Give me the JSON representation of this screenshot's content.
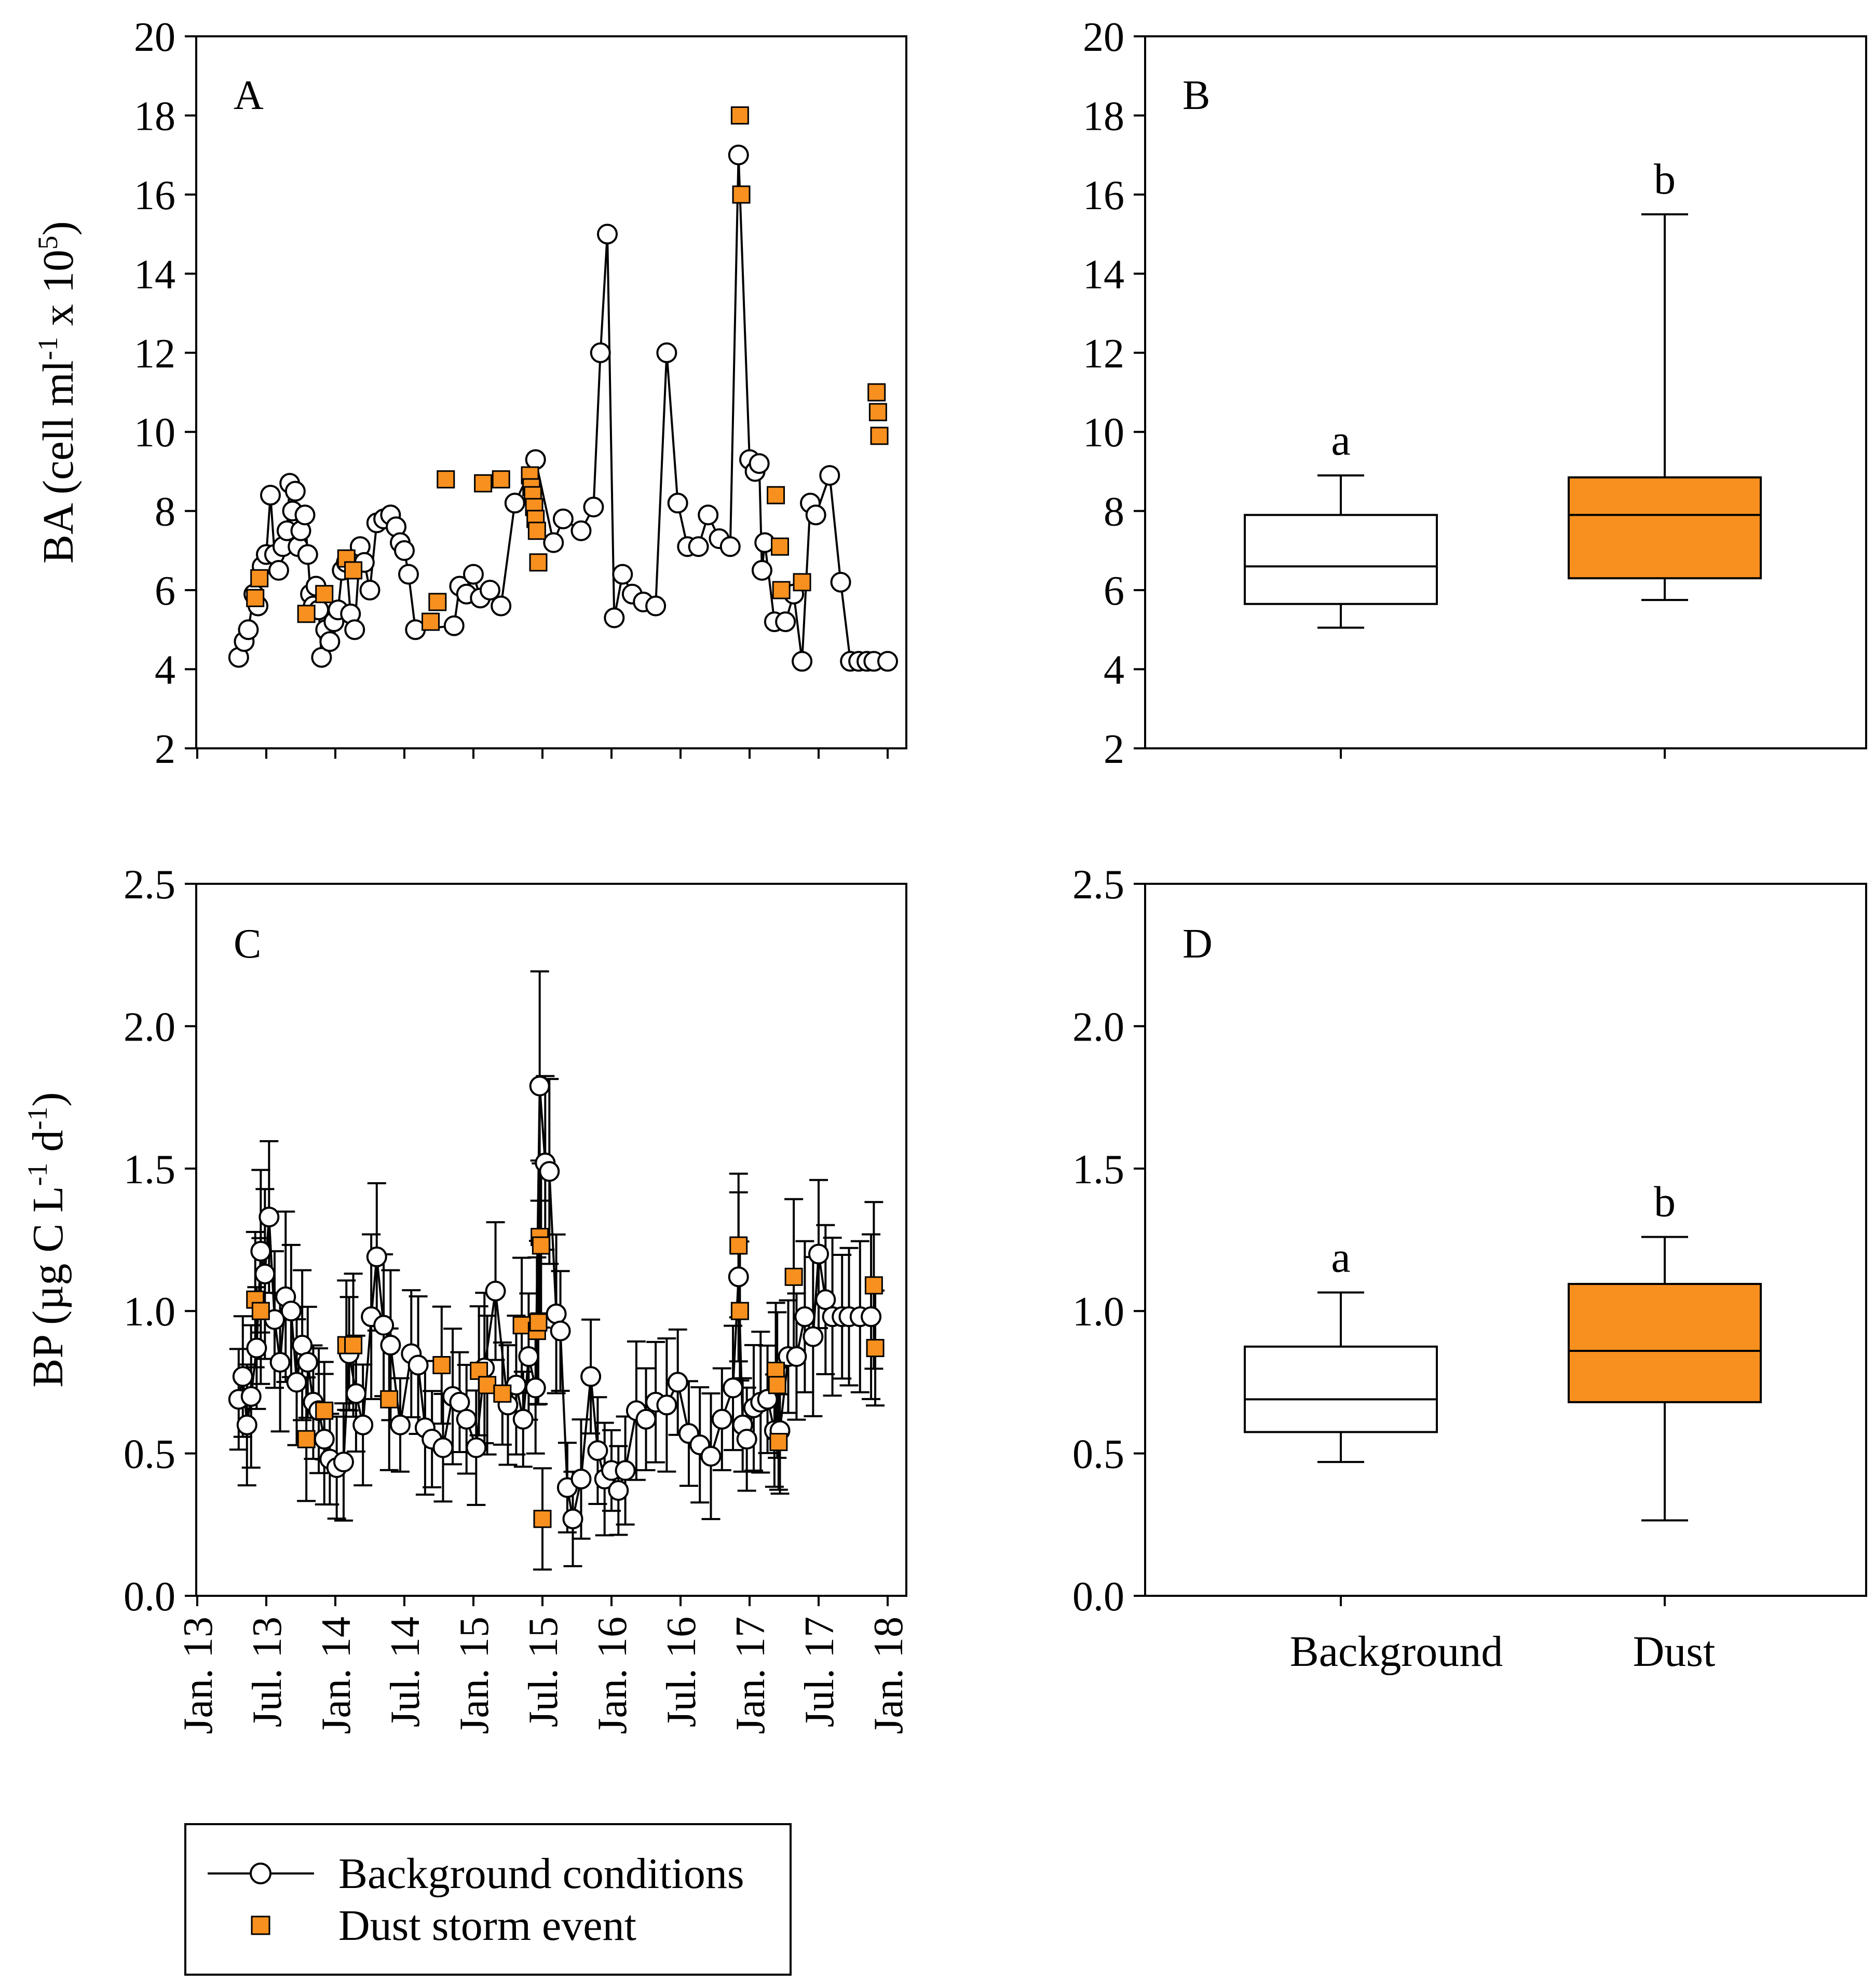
{
  "colors": {
    "dust": "#F7901E",
    "background_fill": "#FFFFFF",
    "line": "#000000"
  },
  "legend": {
    "items": [
      {
        "label": "Background conditions",
        "marker": "open-circle-with-line"
      },
      {
        "label": "Dust storm event",
        "marker": "orange-square"
      }
    ]
  },
  "chart_data": [
    {
      "panel": "A",
      "type": "scatter",
      "ylabel": "BA (cell ml",
      "ylabel_parts": {
        "pre": "BA (cell ml",
        "sup1": "-1",
        "mid": " x 10",
        "sup2": "5",
        "post": ")"
      },
      "ylim": [
        2,
        20
      ],
      "yticks": [
        "2",
        "4",
        "6",
        "8",
        "10",
        "12",
        "14",
        "16",
        "18",
        "20"
      ],
      "xlim": [
        2013.0,
        2018.08
      ],
      "xticks": [
        "Jan. 13",
        "Jul. 13",
        "Jan. 14",
        "Jul. 14",
        "Jan. 15",
        "Jul. 15",
        "Jan. 16",
        "Jul. 16",
        "Jan. 17",
        "Jul. 17",
        "Jan. 18"
      ],
      "xtick_values": [
        2013.0,
        2013.5,
        2014.0,
        2014.5,
        2015.0,
        2015.5,
        2016.0,
        2016.5,
        2017.0,
        2017.5,
        2018.0
      ],
      "series": [
        {
          "name": "Background conditions",
          "x": [
            2013.3,
            2013.34,
            2013.37,
            2013.41,
            2013.44,
            2013.47,
            2013.5,
            2013.53,
            2013.56,
            2013.59,
            2013.62,
            2013.65,
            2013.67,
            2013.69,
            2013.71,
            2013.73,
            2013.75,
            2013.78,
            2013.8,
            2013.82,
            2013.84,
            2013.86,
            2013.88,
            2013.9,
            2013.93,
            2013.96,
            2013.99,
            2014.02,
            2014.05,
            2014.08,
            2014.11,
            2014.14,
            2014.18,
            2014.21,
            2014.25,
            2014.3,
            2014.35,
            2014.4,
            2014.44,
            2014.47,
            2014.5,
            2014.53,
            2014.58,
            2014.86,
            2014.9,
            2014.95,
            2015.0,
            2015.05,
            2015.12,
            2015.2,
            2015.3,
            2015.45,
            2015.58,
            2015.65,
            2015.78,
            2015.87,
            2015.92,
            2015.97,
            2016.02,
            2016.08,
            2016.15,
            2016.23,
            2016.32,
            2016.4,
            2016.48,
            2016.55,
            2016.63,
            2016.7,
            2016.78,
            2016.86,
            2016.92,
            2017.0,
            2017.04,
            2017.07,
            2017.09,
            2017.11,
            2017.18,
            2017.26,
            2017.32,
            2017.38,
            2017.44,
            2017.48,
            2017.58,
            2017.66,
            2017.73,
            2017.79,
            2017.85,
            2017.9,
            2018.0
          ],
          "values": [
            4.3,
            4.7,
            5.0,
            5.9,
            5.6,
            6.6,
            6.9,
            8.4,
            6.9,
            6.5,
            7.1,
            7.5,
            8.7,
            8.0,
            8.5,
            7.1,
            7.5,
            7.9,
            6.9,
            5.9,
            5.6,
            6.1,
            5.5,
            4.3,
            5.0,
            4.7,
            5.2,
            5.5,
            6.5,
            6.7,
            5.4,
            5.0,
            7.1,
            6.7,
            6.0,
            7.7,
            7.8,
            7.9,
            7.6,
            7.2,
            7.0,
            6.4,
            5.0,
            5.1,
            6.1,
            5.9,
            6.4,
            5.8,
            6.0,
            5.6,
            8.2,
            9.3,
            7.2,
            7.8,
            7.5,
            8.1,
            12.0,
            15.0,
            5.3,
            6.4,
            5.9,
            5.7,
            5.6,
            12.0,
            8.2,
            7.1,
            7.1,
            7.9,
            7.3,
            7.1,
            17.0,
            9.3,
            9.0,
            9.2,
            6.5,
            7.2,
            5.2,
            5.2,
            5.9,
            4.2,
            8.2,
            7.9,
            8.9,
            6.2,
            4.2,
            4.2,
            4.2,
            4.2,
            4.2
          ]
        },
        {
          "name": "Dust storm event",
          "x": [
            2013.42,
            2013.45,
            2013.79,
            2013.92,
            2014.08,
            2014.13,
            2014.69,
            2014.74,
            2014.8,
            2015.07,
            2015.2,
            2015.41,
            2015.42,
            2015.43,
            2015.44,
            2015.45,
            2015.46,
            2015.47,
            2016.93,
            2016.94,
            2017.19,
            2017.22,
            2017.23,
            2017.38,
            2017.92,
            2017.93,
            2017.94
          ],
          "values": [
            5.8,
            6.3,
            5.4,
            5.9,
            6.8,
            6.5,
            5.2,
            5.7,
            8.8,
            8.7,
            8.8,
            8.9,
            8.6,
            8.4,
            8.1,
            7.8,
            7.5,
            6.7,
            18.0,
            16.0,
            8.4,
            7.1,
            6.0,
            6.2,
            11.0,
            10.5,
            9.9
          ]
        }
      ]
    },
    {
      "panel": "B",
      "type": "box",
      "ylim": [
        2,
        20
      ],
      "yticks": [
        "2",
        "4",
        "6",
        "8",
        "10",
        "12",
        "14",
        "16",
        "18",
        "20"
      ],
      "categories": [
        "Background",
        "Dust"
      ],
      "boxes": [
        {
          "name": "Background",
          "whisker_low": 5.05,
          "q1": 5.65,
          "median": 6.6,
          "q3": 7.9,
          "whisker_high": 8.9,
          "letter": "a"
        },
        {
          "name": "Dust",
          "whisker_low": 5.75,
          "q1": 6.3,
          "median": 7.9,
          "q3": 8.85,
          "whisker_high": 15.5,
          "letter": "b"
        }
      ]
    },
    {
      "panel": "C",
      "type": "scatter",
      "ylabel_parts": {
        "pre": "BP (µg C L",
        "sup1": "-1",
        "mid": " d",
        "sup2": "-1",
        "post": ")"
      },
      "ylim": [
        0,
        2.5
      ],
      "yticks": [
        "0.0",
        "0.5",
        "1.0",
        "1.5",
        "2.0",
        "2.5"
      ],
      "xlim": [
        2013.0,
        2018.08
      ],
      "xticks": [
        "Jan. 13",
        "Jul. 13",
        "Jan. 14",
        "Jul. 14",
        "Jan. 15",
        "Jul. 15",
        "Jan. 16",
        "Jul. 16",
        "Jan. 17",
        "Jul. 17",
        "Jan. 18"
      ],
      "xtick_values": [
        2013.0,
        2013.5,
        2014.0,
        2014.5,
        2015.0,
        2015.5,
        2016.0,
        2016.5,
        2017.0,
        2017.5,
        2018.0
      ],
      "series": [
        {
          "name": "Background conditions",
          "x": [
            2013.3,
            2013.33,
            2013.36,
            2013.39,
            2013.43,
            2013.46,
            2013.49,
            2013.52,
            2013.56,
            2013.6,
            2013.64,
            2013.68,
            2013.72,
            2013.76,
            2013.8,
            2013.84,
            2013.88,
            2013.92,
            2013.96,
            2014.01,
            2014.06,
            2014.1,
            2014.15,
            2014.2,
            2014.26,
            2014.3,
            2014.35,
            2014.4,
            2014.47,
            2014.55,
            2014.6,
            2014.65,
            2014.7,
            2014.78,
            2014.85,
            2014.9,
            2014.95,
            2015.02,
            2015.08,
            2015.16,
            2015.25,
            2015.31,
            2015.36,
            2015.4,
            2015.45,
            2015.48,
            2015.52,
            2015.55,
            2015.6,
            2015.63,
            2015.68,
            2015.72,
            2015.78,
            2015.85,
            2015.9,
            2015.95,
            2016.0,
            2016.05,
            2016.1,
            2016.18,
            2016.25,
            2016.32,
            2016.4,
            2016.48,
            2016.56,
            2016.64,
            2016.72,
            2016.8,
            2016.88,
            2016.92,
            2016.95,
            2016.98,
            2017.03,
            2017.08,
            2017.13,
            2017.18,
            2017.22,
            2017.28,
            2017.34,
            2017.4,
            2017.46,
            2017.5,
            2017.55,
            2017.6,
            2017.67,
            2017.72,
            2017.8,
            2017.88
          ],
          "values": [
            0.69,
            0.77,
            0.6,
            0.7,
            0.87,
            1.21,
            1.13,
            1.33,
            0.97,
            0.82,
            1.05,
            1.0,
            0.75,
            0.88,
            0.82,
            0.68,
            0.65,
            0.55,
            0.48,
            0.45,
            0.47,
            0.85,
            0.71,
            0.6,
            0.98,
            1.19,
            0.95,
            0.88,
            0.6,
            0.85,
            0.81,
            0.59,
            0.55,
            0.52,
            0.7,
            0.68,
            0.62,
            0.52,
            0.8,
            1.07,
            0.67,
            0.74,
            0.62,
            0.84,
            0.73,
            1.79,
            1.52,
            1.49,
            0.99,
            0.93,
            0.38,
            0.27,
            0.41,
            0.77,
            0.51,
            0.41,
            0.44,
            0.37,
            0.44,
            0.65,
            0.62,
            0.68,
            0.67,
            0.75,
            0.57,
            0.53,
            0.49,
            0.62,
            0.73,
            1.12,
            0.6,
            0.55,
            0.66,
            0.68,
            0.69,
            0.58,
            0.58,
            0.84,
            0.84,
            0.98,
            0.91,
            1.2,
            1.04,
            0.98,
            0.98,
            0.98,
            0.98,
            0.98
          ]
        },
        {
          "name": "Dust storm event",
          "x": [
            2013.42,
            2013.46,
            2013.79,
            2013.92,
            2014.08,
            2014.13,
            2014.39,
            2014.77,
            2015.04,
            2015.1,
            2015.21,
            2015.35,
            2015.46,
            2015.47,
            2015.48,
            2015.49,
            2015.5,
            2016.92,
            2016.93,
            2017.19,
            2017.2,
            2017.21,
            2017.32,
            2017.9,
            2017.91
          ],
          "values": [
            1.04,
            1.0,
            0.55,
            0.65,
            0.88,
            0.88,
            0.69,
            0.81,
            0.79,
            0.74,
            0.71,
            0.95,
            0.93,
            0.96,
            1.26,
            1.23,
            0.27,
            1.23,
            1.0,
            0.79,
            0.74,
            0.54,
            1.12,
            1.09,
            0.87
          ]
        }
      ]
    },
    {
      "panel": "D",
      "type": "box",
      "ylim": [
        0,
        2.5
      ],
      "yticks": [
        "0.0",
        "0.5",
        "1.0",
        "1.5",
        "2.0",
        "2.5"
      ],
      "categories": [
        "Background",
        "Dust"
      ],
      "boxes": [
        {
          "name": "Background",
          "whisker_low": 0.47,
          "q1": 0.575,
          "median": 0.69,
          "q3": 0.875,
          "whisker_high": 1.065,
          "letter": "a"
        },
        {
          "name": "Dust",
          "whisker_low": 0.265,
          "q1": 0.68,
          "median": 0.86,
          "q3": 1.095,
          "whisker_high": 1.26,
          "letter": "b"
        }
      ]
    }
  ]
}
